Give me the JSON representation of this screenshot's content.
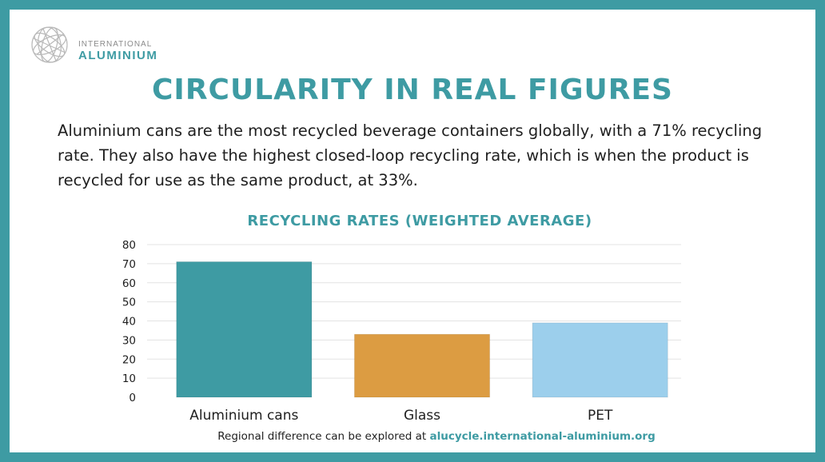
{
  "logo": {
    "small_text": "INTERNATIONAL",
    "big_text": "ALUMINIUM"
  },
  "title": "CIRCULARITY IN REAL FIGURES",
  "description": "Aluminium cans are the most recycled beverage containers globally, with a 71% recycling rate. They also have the highest closed-loop recycling rate, which is when the product is recycled for use as the same product, at 33%.",
  "chart_data": {
    "type": "bar",
    "title": "RECYCLING RATES (WEIGHTED AVERAGE)",
    "categories": [
      "Aluminium cans",
      "Glass",
      "PET"
    ],
    "values": [
      71,
      33,
      39
    ],
    "colors": [
      "#3e9ba3",
      "#dc9c42",
      "#9ccfec"
    ],
    "ylim": [
      0,
      80
    ],
    "yticks": [
      0,
      10,
      20,
      30,
      40,
      50,
      60,
      70,
      80
    ],
    "xlabel": "",
    "ylabel": "",
    "grid": true
  },
  "footer": {
    "text": "Regional difference can be explored at ",
    "link": "alucycle.international-aluminium.org"
  },
  "colors": {
    "accent": "#3e9ba3",
    "text": "#1f1f1f",
    "grid": "#e3e3e3"
  }
}
